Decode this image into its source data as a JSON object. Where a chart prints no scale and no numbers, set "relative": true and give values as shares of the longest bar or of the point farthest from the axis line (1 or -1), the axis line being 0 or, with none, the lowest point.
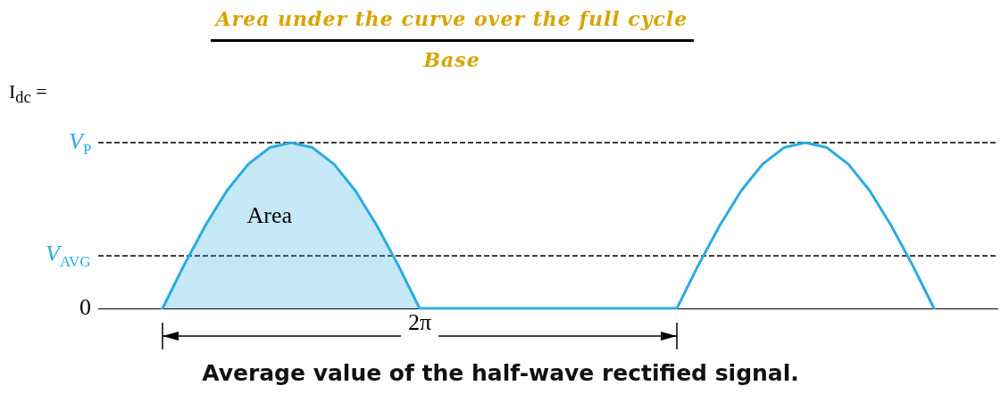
{
  "chart_data": {
    "type": "area",
    "title": "Average value of the half-wave rectified signal.",
    "relative": true,
    "categories": [
      null,
      null,
      null,
      null,
      null,
      null,
      null,
      null,
      null,
      null,
      null,
      null,
      null,
      null,
      null,
      null,
      null,
      null,
      null,
      null,
      null,
      null,
      null,
      null,
      null,
      null,
      null,
      null,
      null,
      null,
      null,
      null,
      null,
      null,
      null,
      null,
      null,
      null,
      null,
      null,
      null,
      null,
      null
    ],
    "series": [
      {
        "color": "#29abe2",
        "values": [
          null,
          null,
          null,
          0,
          0.26,
          0.5,
          0.71,
          0.87,
          0.97,
          1,
          0.97,
          0.87,
          0.71,
          0.5,
          0.26,
          0,
          null,
          null,
          null,
          null,
          null,
          null,
          null,
          null,
          null,
          null,
          null,
          null,
          null,
          null,
          null,
          null,
          null,
          null,
          null,
          null,
          null,
          null,
          null,
          null,
          null,
          null,
          null
        ]
      },
      {
        "type": "line",
        "color": "#29abe2",
        "values": [
          null,
          null,
          null,
          null,
          null,
          null,
          null,
          null,
          null,
          null,
          null,
          null,
          null,
          null,
          null,
          0,
          0,
          0,
          0,
          0,
          0,
          0,
          0,
          0,
          0,
          0,
          0,
          0,
          0.26,
          0.5,
          0.71,
          0.87,
          0.97,
          1,
          0.97,
          0.87,
          0.71,
          0.5,
          0.26,
          0,
          null,
          null,
          null
        ]
      }
    ],
    "ref_lines": [
      {
        "axis": "y",
        "value": 1,
        "label": "V$_{P}$",
        "line_style": "dashed",
        "color": "#000000"
      },
      {
        "axis": "y",
        "value": 0.32,
        "label": "V$_{AVG}$",
        "line_style": "dashed",
        "color": "#000000"
      },
      {
        "axis": "y",
        "value": 0,
        "label": "0",
        "line_style": "solid",
        "color": "#000000"
      }
    ],
    "annotations": [
      "I$_{dc}$ =",
      "Area under the curve over the full cycle",
      "Base",
      "Area",
      "2π"
    ],
    "marker": "none",
    "line_style": "solid",
    "grid": false
  }
}
